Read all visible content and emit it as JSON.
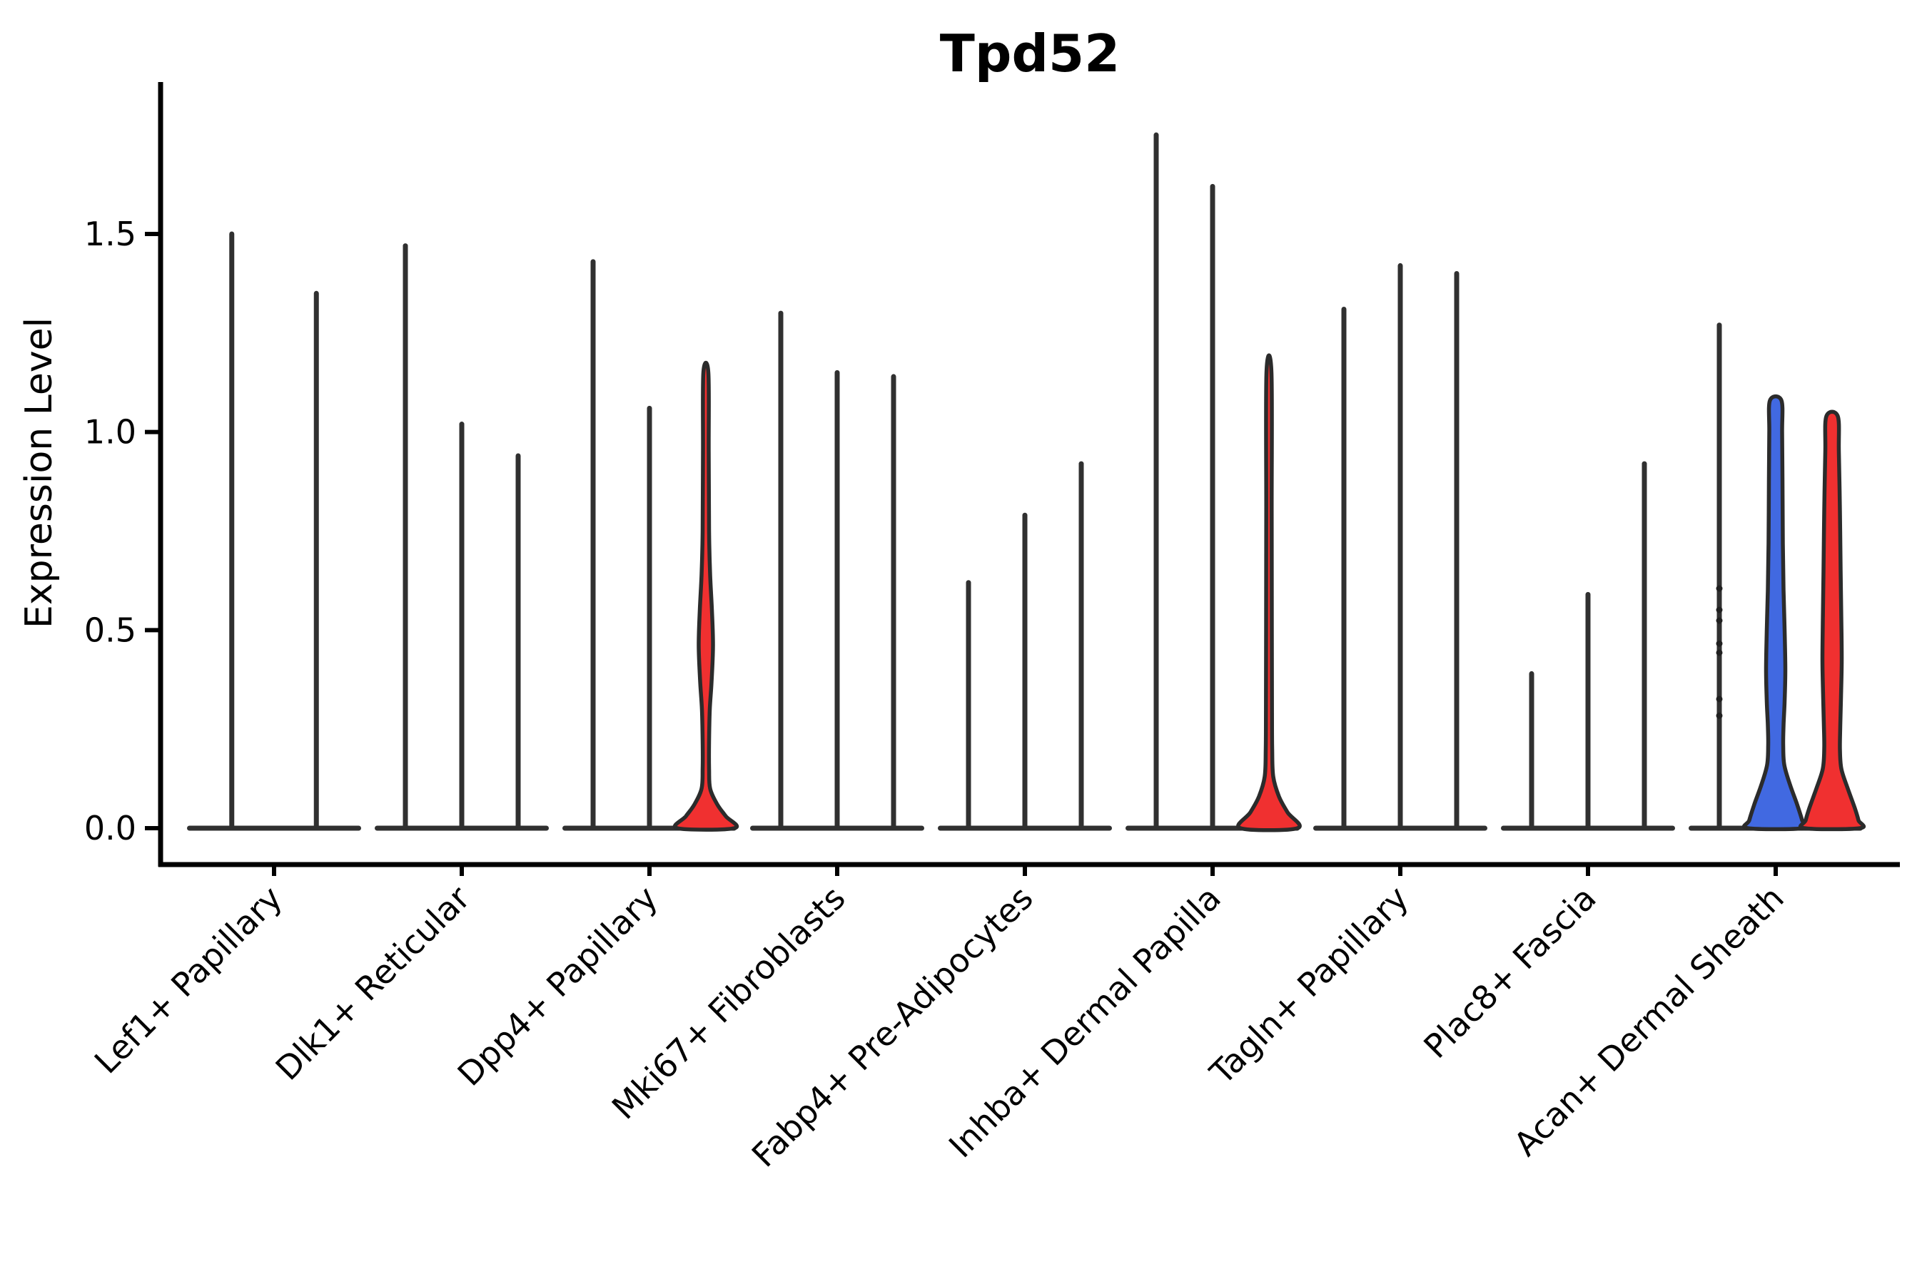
{
  "chart_data": {
    "type": "violin",
    "title": "Tpd52",
    "ylabel": "Expression Level",
    "xlabel": "",
    "ylim": [
      0,
      1.88
    ],
    "yticks": [
      0.0,
      0.5,
      1.0,
      1.5
    ],
    "ytick_labels": [
      "0.0",
      "0.5",
      "1.0",
      "1.5"
    ],
    "legend": "none",
    "grid": false,
    "categories": [
      "Lef1+ Papillary",
      "Dlk1+ Reticular",
      "Dpp4+ Papillary",
      "Mki67+ Fibroblasts",
      "Fabp4+ Pre-Adipocytes",
      "Inhba+ Dermal Papilla",
      "Tagln+ Papillary",
      "Plac8+ Fascia",
      "Acan+ Dermal Sheath"
    ],
    "colors": {
      "violin_line": "#303030",
      "violin_outline": "#2b2b2b",
      "red_fill": "#f03030",
      "blue_fill": "#4169e1",
      "axis": "#000000"
    },
    "groups": [
      {
        "category": "Lef1+ Papillary",
        "violins": [
          {
            "max_expression": 1.5,
            "style": "line"
          },
          {
            "max_expression": 1.35,
            "style": "line"
          }
        ]
      },
      {
        "category": "Dlk1+ Reticular",
        "violins": [
          {
            "max_expression": 1.47,
            "style": "line"
          },
          {
            "max_expression": 1.02,
            "style": "line"
          },
          {
            "max_expression": 0.94,
            "style": "line"
          }
        ]
      },
      {
        "category": "Dpp4+ Papillary",
        "violins": [
          {
            "max_expression": 1.43,
            "style": "line"
          },
          {
            "max_expression": 1.06,
            "style": "line"
          },
          {
            "max_expression": 1.15,
            "style": "filled",
            "fill": "#f03030",
            "profile": [
              [
                1.15,
                3.5
              ],
              [
                0.95,
                4
              ],
              [
                0.75,
                4.5
              ],
              [
                0.64,
                6
              ],
              [
                0.55,
                8.5
              ],
              [
                0.46,
                10
              ],
              [
                0.37,
                8
              ],
              [
                0.3,
                5.5
              ],
              [
                0.22,
                4.5
              ],
              [
                0.15,
                4.5
              ],
              [
                0.1,
                6
              ],
              [
                0.06,
                16
              ],
              [
                0.03,
                28
              ],
              [
                0.0,
                40
              ]
            ]
          }
        ]
      },
      {
        "category": "Mki67+ Fibroblasts",
        "violins": [
          {
            "max_expression": 1.3,
            "style": "line"
          },
          {
            "max_expression": 1.15,
            "style": "line"
          },
          {
            "max_expression": 1.14,
            "style": "line"
          }
        ]
      },
      {
        "category": "Fabp4+ Pre-Adipocytes",
        "violins": [
          {
            "max_expression": 0.62,
            "style": "line"
          },
          {
            "max_expression": 0.79,
            "style": "line"
          },
          {
            "max_expression": 0.92,
            "style": "line"
          }
        ]
      },
      {
        "category": "Inhba+ Dermal Papilla",
        "violins": [
          {
            "max_expression": 1.75,
            "style": "line"
          },
          {
            "max_expression": 1.62,
            "style": "line"
          },
          {
            "max_expression": 1.15,
            "style": "filled",
            "fill": "#f03030",
            "profile": [
              [
                1.15,
                3.5
              ],
              [
                0.8,
                3.8
              ],
              [
                0.5,
                4
              ],
              [
                0.3,
                4.2
              ],
              [
                0.2,
                4.5
              ],
              [
                0.13,
                6
              ],
              [
                0.08,
                14
              ],
              [
                0.04,
                26
              ],
              [
                0.0,
                40
              ]
            ]
          }
        ]
      },
      {
        "category": "Tagln+ Papillary",
        "violins": [
          {
            "max_expression": 1.31,
            "style": "line"
          },
          {
            "max_expression": 1.42,
            "style": "line"
          },
          {
            "max_expression": 1.4,
            "style": "line"
          }
        ]
      },
      {
        "category": "Plac8+ Fascia",
        "violins": [
          {
            "max_expression": 0.39,
            "style": "line"
          },
          {
            "max_expression": 0.59,
            "style": "line"
          },
          {
            "max_expression": 0.92,
            "style": "line"
          }
        ]
      },
      {
        "category": "Acan+ Dermal Sheath",
        "violins": [
          {
            "max_expression": 1.27,
            "style": "line",
            "points": [
              0.605,
              0.551,
              0.524,
              0.466,
              0.443,
              0.326,
              0.284
            ]
          },
          {
            "max_expression": 1.08,
            "style": "filled",
            "fill": "#4169e1",
            "profile": [
              [
                1.08,
                8
              ],
              [
                1.0,
                9
              ],
              [
                0.88,
                9.5
              ],
              [
                0.72,
                10
              ],
              [
                0.6,
                11
              ],
              [
                0.5,
                12.5
              ],
              [
                0.4,
                13.5
              ],
              [
                0.32,
                12.5
              ],
              [
                0.26,
                11
              ],
              [
                0.21,
                10.5
              ],
              [
                0.16,
                12
              ],
              [
                0.11,
                20
              ],
              [
                0.06,
                30
              ],
              [
                0.02,
                37
              ],
              [
                0.0,
                39
              ]
            ]
          },
          {
            "max_expression": 1.04,
            "style": "filled",
            "fill": "#f03030",
            "profile": [
              [
                1.04,
                8
              ],
              [
                0.95,
                9.5
              ],
              [
                0.8,
                11
              ],
              [
                0.65,
                12
              ],
              [
                0.52,
                13
              ],
              [
                0.42,
                13.5
              ],
              [
                0.33,
                12.5
              ],
              [
                0.26,
                11.5
              ],
              [
                0.2,
                11
              ],
              [
                0.15,
                13
              ],
              [
                0.1,
                22
              ],
              [
                0.05,
                32
              ],
              [
                0.02,
                37
              ],
              [
                0.0,
                39
              ]
            ]
          }
        ]
      }
    ]
  }
}
